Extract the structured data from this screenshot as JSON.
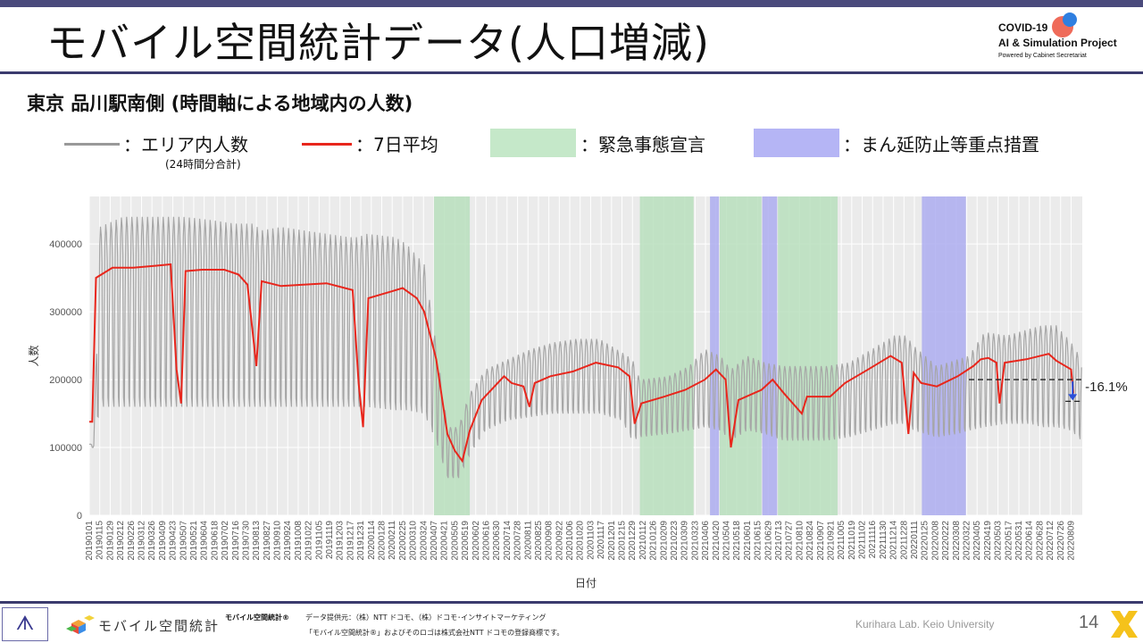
{
  "header": {
    "title": "モバイル空間統計データ(人口増減)",
    "logo_line1": "COVID-19",
    "logo_line2": "AI & Simulation Project",
    "logo_line3": "Powered by Cabinet Secretariat"
  },
  "subtitle": "東京 品川駅南側 (時間軸による地域内の人数)",
  "legend": {
    "gray_label": "：エリア内人数",
    "gray_note": "(24時間分合計)",
    "red_label": "：7日平均",
    "green_label": "：緊急事態宣言",
    "blue_label": "：まん延防止等重点措置",
    "colors": {
      "gray": "#999999",
      "red": "#e8261c",
      "green": "#c5e8c9",
      "blue": "#b5b5f5"
    }
  },
  "chart_data": {
    "type": "line",
    "xlabel": "日付",
    "ylabel": "人数",
    "ylim": [
      0,
      470000
    ],
    "xlim": [
      "2019-01-01",
      "2022-08-24"
    ],
    "yticks": [
      0,
      100000,
      200000,
      300000,
      400000
    ],
    "ytick_labels": [
      "0",
      "100000",
      "200000",
      "300000",
      "400000"
    ],
    "xtick_labels": [
      "20190101",
      "20190115",
      "20190129",
      "20190212",
      "20190226",
      "20190312",
      "20190326",
      "20190409",
      "20190423",
      "20190507",
      "20190521",
      "20190604",
      "20190618",
      "20190702",
      "20190716",
      "20190730",
      "20190813",
      "20190827",
      "20190910",
      "20190924",
      "20191008",
      "20191022",
      "20191105",
      "20191119",
      "20191203",
      "20191217",
      "20191231",
      "20200114",
      "20200128",
      "20200211",
      "20200225",
      "20200310",
      "20200324",
      "20200407",
      "20200421",
      "20200505",
      "20200519",
      "20200602",
      "20200616",
      "20200630",
      "20200714",
      "20200728",
      "20200811",
      "20200825",
      "20200908",
      "20200922",
      "20201006",
      "20201020",
      "20201103",
      "20201117",
      "20201201",
      "20201215",
      "20201229",
      "20210112",
      "20210126",
      "20210209",
      "20210223",
      "20210309",
      "20210323",
      "20210406",
      "20210420",
      "20210504",
      "20210518",
      "20210601",
      "20210615",
      "20210629",
      "20210713",
      "20210727",
      "20210810",
      "20210824",
      "20210907",
      "20210921",
      "20211005",
      "20211019",
      "20211102",
      "20211116",
      "20211130",
      "20211214",
      "20211228",
      "20220111",
      "20220125",
      "20220208",
      "20220222",
      "20220308",
      "20220322",
      "20220405",
      "20220419",
      "20220503",
      "20220517",
      "20220531",
      "20220614",
      "20220628",
      "20220712",
      "20220726",
      "20220809"
    ],
    "grid": true,
    "shaded_periods": [
      {
        "kind": "emergency",
        "start": "2020-04-07",
        "end": "2020-05-25"
      },
      {
        "kind": "emergency",
        "start": "2021-01-08",
        "end": "2021-03-21"
      },
      {
        "kind": "quasi",
        "start": "2021-04-12",
        "end": "2021-04-24"
      },
      {
        "kind": "emergency",
        "start": "2021-04-25",
        "end": "2021-06-20"
      },
      {
        "kind": "quasi",
        "start": "2021-06-21",
        "end": "2021-07-11"
      },
      {
        "kind": "emergency",
        "start": "2021-07-12",
        "end": "2021-09-30"
      },
      {
        "kind": "quasi",
        "start": "2022-01-21",
        "end": "2022-03-21"
      }
    ],
    "series": [
      {
        "name": "エリア内人数",
        "style": "weekly_oscillation",
        "x": [
          "2019-01-01",
          "2019-01-07",
          "2019-01-15",
          "2019-02-15",
          "2019-03-15",
          "2019-04-15",
          "2019-04-26",
          "2019-05-07",
          "2019-06-15",
          "2019-07-15",
          "2019-08-08",
          "2019-08-20",
          "2019-09-15",
          "2019-10-15",
          "2019-11-15",
          "2019-12-15",
          "2019-12-28",
          "2020-01-07",
          "2020-02-15",
          "2020-03-01",
          "2020-03-25",
          "2020-04-10",
          "2020-04-25",
          "2020-05-10",
          "2020-05-25",
          "2020-06-15",
          "2020-07-15",
          "2020-08-15",
          "2020-09-15",
          "2020-10-15",
          "2020-11-15",
          "2020-12-15",
          "2020-12-29",
          "2021-01-08",
          "2021-02-15",
          "2021-03-15",
          "2021-04-05",
          "2021-04-26",
          "2021-05-10",
          "2021-06-01",
          "2021-06-25",
          "2021-07-20",
          "2021-08-15",
          "2021-09-15",
          "2021-10-15",
          "2021-11-15",
          "2021-12-15",
          "2021-12-31",
          "2022-01-10",
          "2022-02-10",
          "2022-03-10",
          "2022-03-25",
          "2022-04-15",
          "2022-05-15",
          "2022-06-15",
          "2022-07-01",
          "2022-07-20",
          "2022-08-09",
          "2022-08-23"
        ],
        "peaks": [
          105000,
          105000,
          425000,
          440000,
          440000,
          440000,
          440000,
          440000,
          435000,
          430000,
          430000,
          420000,
          425000,
          420000,
          415000,
          410000,
          410000,
          415000,
          410000,
          400000,
          370000,
          250000,
          130000,
          130000,
          180000,
          215000,
          230000,
          245000,
          255000,
          260000,
          260000,
          240000,
          230000,
          200000,
          205000,
          220000,
          245000,
          235000,
          215000,
          235000,
          225000,
          220000,
          220000,
          220000,
          225000,
          245000,
          265000,
          265000,
          250000,
          220000,
          230000,
          235000,
          270000,
          265000,
          275000,
          280000,
          280000,
          255000,
          230000
        ],
        "troughs": [
          100000,
          100000,
          160000,
          160000,
          160000,
          160000,
          160000,
          160000,
          160000,
          160000,
          160000,
          160000,
          160000,
          160000,
          160000,
          160000,
          160000,
          160000,
          155000,
          155000,
          150000,
          110000,
          55000,
          55000,
          90000,
          125000,
          140000,
          145000,
          150000,
          150000,
          150000,
          140000,
          110000,
          115000,
          120000,
          125000,
          130000,
          125000,
          110000,
          125000,
          120000,
          110000,
          110000,
          110000,
          115000,
          125000,
          135000,
          135000,
          125000,
          115000,
          120000,
          125000,
          130000,
          135000,
          135000,
          130000,
          130000,
          125000,
          110000
        ]
      },
      {
        "name": "7日平均",
        "x": [
          "2019-01-01",
          "2019-01-05",
          "2019-01-10",
          "2019-02-01",
          "2019-03-01",
          "2019-04-01",
          "2019-04-20",
          "2019-04-28",
          "2019-05-04",
          "2019-05-10",
          "2019-06-01",
          "2019-07-01",
          "2019-07-20",
          "2019-08-01",
          "2019-08-13",
          "2019-08-20",
          "2019-09-15",
          "2019-10-15",
          "2019-11-15",
          "2019-12-20",
          "2019-12-28",
          "2020-01-03",
          "2020-01-10",
          "2020-02-10",
          "2020-02-25",
          "2020-03-15",
          "2020-03-25",
          "2020-04-10",
          "2020-04-25",
          "2020-05-05",
          "2020-05-15",
          "2020-05-25",
          "2020-06-10",
          "2020-07-10",
          "2020-07-20",
          "2020-08-05",
          "2020-08-13",
          "2020-08-20",
          "2020-09-10",
          "2020-10-10",
          "2020-11-10",
          "2020-12-10",
          "2020-12-25",
          "2021-01-01",
          "2021-01-10",
          "2021-02-10",
          "2021-03-10",
          "2021-04-05",
          "2021-04-20",
          "2021-05-03",
          "2021-05-10",
          "2021-05-20",
          "2021-06-20",
          "2021-07-05",
          "2021-07-20",
          "2021-08-13",
          "2021-08-20",
          "2021-09-20",
          "2021-10-10",
          "2021-11-10",
          "2021-12-10",
          "2021-12-25",
          "2022-01-03",
          "2022-01-10",
          "2022-01-20",
          "2022-02-10",
          "2022-03-10",
          "2022-03-31",
          "2022-04-10",
          "2022-04-20",
          "2022-05-01",
          "2022-05-05",
          "2022-05-12",
          "2022-06-10",
          "2022-07-10",
          "2022-07-20",
          "2022-08-09",
          "2022-08-12"
        ],
        "y": [
          138000,
          138000,
          350000,
          365000,
          365000,
          368000,
          370000,
          215000,
          165000,
          360000,
          362000,
          362000,
          355000,
          340000,
          220000,
          345000,
          338000,
          340000,
          342000,
          332000,
          195000,
          130000,
          320000,
          330000,
          335000,
          320000,
          300000,
          230000,
          120000,
          95000,
          80000,
          125000,
          170000,
          205000,
          195000,
          190000,
          160000,
          195000,
          205000,
          212000,
          225000,
          218000,
          205000,
          135000,
          165000,
          175000,
          185000,
          200000,
          215000,
          200000,
          100000,
          170000,
          185000,
          200000,
          180000,
          150000,
          175000,
          175000,
          195000,
          215000,
          235000,
          225000,
          120000,
          210000,
          195000,
          190000,
          205000,
          220000,
          230000,
          232000,
          225000,
          165000,
          225000,
          230000,
          238000,
          228000,
          215000,
          180000
        ]
      }
    ],
    "annotation": {
      "text": "-16.1%",
      "from_value": 200000,
      "to_value": 168000
    }
  },
  "footer": {
    "logo_text": "モバイル空間統計",
    "registered": "モバイル空間統計®",
    "source_line1": "データ提供元：（株）NTT ドコモ、（株）ドコモ･インサイトマーケティング",
    "source_line2": "「モバイル空間統計®」およびそのロゴは株式会社NTT ドコモの登録商標です。",
    "lab": "Kurihara Lab. Keio University",
    "page": "14"
  }
}
